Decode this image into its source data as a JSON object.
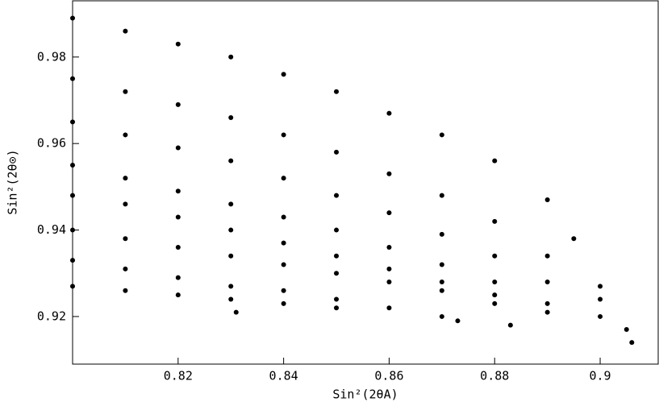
{
  "chart_data": {
    "type": "scatter",
    "x_label": "Sin²(2θA)",
    "y_label": "Sin²(2θ⊙)",
    "xlim": [
      0.8,
      0.911
    ],
    "ylim": [
      0.909,
      0.993
    ],
    "xticks": [
      0.82,
      0.84,
      0.86,
      0.88,
      0.9
    ],
    "yticks": [
      0.92,
      0.94,
      0.96,
      0.98
    ],
    "series": [
      {
        "color": "#000000",
        "x": [
          0.8,
          0.81,
          0.82,
          0.83,
          0.84,
          0.85,
          0.86,
          0.87,
          0.88,
          0.89,
          0.895,
          0.9,
          0.905,
          0.8,
          0.81,
          0.82,
          0.83,
          0.84,
          0.85,
          0.86,
          0.87,
          0.88,
          0.89,
          0.9,
          0.8,
          0.81,
          0.82,
          0.83,
          0.84,
          0.85,
          0.86,
          0.87,
          0.88,
          0.89,
          0.9,
          0.8,
          0.81,
          0.82,
          0.83,
          0.84,
          0.85,
          0.86,
          0.87,
          0.88,
          0.89,
          0.8,
          0.81,
          0.82,
          0.83,
          0.84,
          0.85,
          0.86,
          0.87,
          0.88,
          0.89,
          0.8,
          0.81,
          0.82,
          0.83,
          0.84,
          0.85,
          0.86,
          0.87,
          0.88,
          0.8,
          0.81,
          0.82,
          0.83,
          0.84,
          0.85,
          0.86,
          0.87,
          0.8,
          0.81,
          0.82,
          0.83,
          0.84,
          0.85,
          0.831,
          0.873,
          0.883,
          0.906
        ],
        "values": [
          0.989,
          0.986,
          0.983,
          0.98,
          0.976,
          0.972,
          0.967,
          0.962,
          0.956,
          0.947,
          0.938,
          0.927,
          0.917,
          0.975,
          0.972,
          0.969,
          0.966,
          0.962,
          0.958,
          0.953,
          0.948,
          0.942,
          0.934,
          0.924,
          0.965,
          0.962,
          0.959,
          0.956,
          0.952,
          0.948,
          0.944,
          0.939,
          0.934,
          0.928,
          0.92,
          0.955,
          0.952,
          0.949,
          0.946,
          0.943,
          0.94,
          0.936,
          0.932,
          0.928,
          0.923,
          0.948,
          0.946,
          0.943,
          0.94,
          0.937,
          0.934,
          0.931,
          0.928,
          0.925,
          0.921,
          0.94,
          0.938,
          0.936,
          0.934,
          0.932,
          0.93,
          0.928,
          0.926,
          0.923,
          0.933,
          0.931,
          0.929,
          0.927,
          0.926,
          0.924,
          0.922,
          0.92,
          0.927,
          0.926,
          0.925,
          0.924,
          0.923,
          0.922,
          0.921,
          0.919,
          0.918,
          0.914
        ]
      }
    ]
  }
}
